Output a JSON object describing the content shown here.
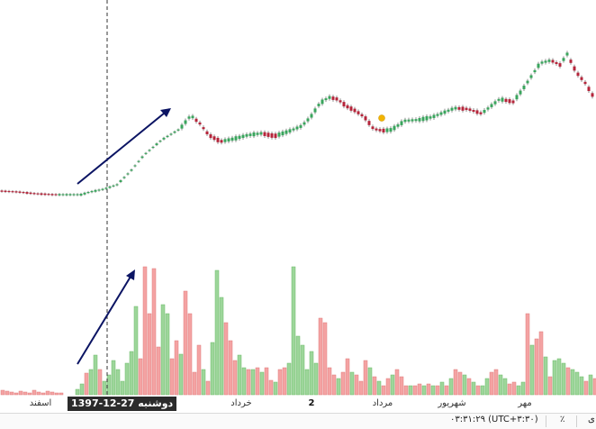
{
  "time_axis": {
    "ticks": [
      {
        "label": "اسفند",
        "bold": false
      },
      {
        "label": "خرداد",
        "bold": false
      },
      {
        "label": "2",
        "bold": true
      },
      {
        "label": "مرداد",
        "bold": false
      },
      {
        "label": "شهریور",
        "bold": false
      },
      {
        "label": "مهر",
        "bold": false
      }
    ],
    "crosshair_label": "دوشنبه 27-12-1397"
  },
  "status_bar": {
    "time": "۰۳:۳۱:۲۹ (UTC+۳:۳۰)",
    "percent_button": "٪",
    "log_button": "ی"
  },
  "colors": {
    "up_candle": "#3aa55d",
    "down_candle": "#b5243a",
    "up_volume": "#9dd69a",
    "down_volume": "#f4a3a3",
    "arrow": "#0b1463",
    "marker": "#f2b400"
  },
  "chart_data": {
    "type": "candlestick",
    "price_path": [
      [
        0,
        212
      ],
      [
        20,
        213
      ],
      [
        40,
        215
      ],
      [
        60,
        216
      ],
      [
        90,
        216
      ],
      [
        100,
        213
      ],
      [
        115,
        210
      ],
      [
        130,
        205
      ],
      [
        145,
        190
      ],
      [
        160,
        172
      ],
      [
        180,
        155
      ],
      [
        200,
        143
      ],
      [
        212,
        128
      ],
      [
        222,
        137
      ],
      [
        232,
        150
      ],
      [
        245,
        157
      ],
      [
        260,
        154
      ],
      [
        275,
        150
      ],
      [
        290,
        148
      ],
      [
        305,
        151
      ],
      [
        320,
        146
      ],
      [
        335,
        140
      ],
      [
        345,
        130
      ],
      [
        355,
        115
      ],
      [
        365,
        108
      ],
      [
        375,
        110
      ],
      [
        385,
        118
      ],
      [
        395,
        123
      ],
      [
        405,
        130
      ],
      [
        415,
        143
      ],
      [
        425,
        145
      ],
      [
        435,
        144
      ],
      [
        450,
        134
      ],
      [
        465,
        133
      ],
      [
        480,
        130
      ],
      [
        495,
        124
      ],
      [
        505,
        120
      ],
      [
        520,
        121
      ],
      [
        535,
        126
      ],
      [
        545,
        118
      ],
      [
        555,
        110
      ],
      [
        570,
        113
      ],
      [
        580,
        100
      ],
      [
        590,
        85
      ],
      [
        600,
        70
      ],
      [
        612,
        67
      ],
      [
        622,
        72
      ],
      [
        630,
        60
      ],
      [
        640,
        80
      ],
      [
        650,
        92
      ],
      [
        662,
        112
      ]
    ],
    "volume_bars": [
      [
        3,
        5,
        "d"
      ],
      [
        8,
        4,
        "d"
      ],
      [
        13,
        3,
        "d"
      ],
      [
        18,
        2,
        "d"
      ],
      [
        23,
        4,
        "d"
      ],
      [
        28,
        3,
        "d"
      ],
      [
        33,
        2,
        "d"
      ],
      [
        38,
        5,
        "d"
      ],
      [
        43,
        3,
        "d"
      ],
      [
        48,
        2,
        "d"
      ],
      [
        53,
        4,
        "d"
      ],
      [
        58,
        3,
        "d"
      ],
      [
        63,
        2,
        "d"
      ],
      [
        68,
        2,
        "d"
      ],
      [
        86,
        6,
        "u"
      ],
      [
        91,
        12,
        "u"
      ],
      [
        96,
        24,
        "d"
      ],
      [
        101,
        28,
        "u"
      ],
      [
        106,
        44,
        "u"
      ],
      [
        111,
        28,
        "d"
      ],
      [
        116,
        15,
        "u"
      ],
      [
        121,
        22,
        "u"
      ],
      [
        126,
        38,
        "u"
      ],
      [
        131,
        28,
        "u"
      ],
      [
        136,
        15,
        "u"
      ],
      [
        141,
        35,
        "u"
      ],
      [
        146,
        48,
        "u"
      ],
      [
        151,
        98,
        "u"
      ],
      [
        156,
        40,
        "d"
      ],
      [
        161,
        142,
        "d"
      ],
      [
        166,
        90,
        "d"
      ],
      [
        171,
        140,
        "d"
      ],
      [
        176,
        53,
        "d"
      ],
      [
        181,
        100,
        "u"
      ],
      [
        186,
        90,
        "u"
      ],
      [
        191,
        40,
        "d"
      ],
      [
        196,
        60,
        "d"
      ],
      [
        201,
        45,
        "u"
      ],
      [
        206,
        115,
        "d"
      ],
      [
        211,
        90,
        "d"
      ],
      [
        216,
        25,
        "d"
      ],
      [
        221,
        55,
        "d"
      ],
      [
        226,
        28,
        "u"
      ],
      [
        231,
        15,
        "d"
      ],
      [
        236,
        58,
        "u"
      ],
      [
        241,
        138,
        "u"
      ],
      [
        246,
        108,
        "u"
      ],
      [
        251,
        80,
        "d"
      ],
      [
        256,
        60,
        "d"
      ],
      [
        261,
        38,
        "d"
      ],
      [
        266,
        44,
        "u"
      ],
      [
        271,
        30,
        "u"
      ],
      [
        276,
        28,
        "d"
      ],
      [
        281,
        28,
        "u"
      ],
      [
        286,
        30,
        "d"
      ],
      [
        291,
        25,
        "u"
      ],
      [
        296,
        30,
        "d"
      ],
      [
        301,
        16,
        "d"
      ],
      [
        306,
        14,
        "u"
      ],
      [
        311,
        28,
        "d"
      ],
      [
        316,
        30,
        "d"
      ],
      [
        321,
        35,
        "u"
      ],
      [
        326,
        142,
        "u"
      ],
      [
        331,
        65,
        "u"
      ],
      [
        336,
        55,
        "u"
      ],
      [
        341,
        28,
        "u"
      ],
      [
        346,
        48,
        "u"
      ],
      [
        351,
        35,
        "u"
      ],
      [
        356,
        85,
        "d"
      ],
      [
        361,
        80,
        "d"
      ],
      [
        366,
        30,
        "d"
      ],
      [
        371,
        22,
        "d"
      ],
      [
        376,
        18,
        "u"
      ],
      [
        381,
        25,
        "d"
      ],
      [
        386,
        40,
        "d"
      ],
      [
        391,
        25,
        "u"
      ],
      [
        396,
        22,
        "d"
      ],
      [
        401,
        15,
        "d"
      ],
      [
        406,
        38,
        "d"
      ],
      [
        411,
        30,
        "u"
      ],
      [
        416,
        20,
        "d"
      ],
      [
        421,
        15,
        "u"
      ],
      [
        426,
        10,
        "d"
      ],
      [
        431,
        18,
        "d"
      ],
      [
        436,
        22,
        "u"
      ],
      [
        441,
        28,
        "d"
      ],
      [
        446,
        20,
        "d"
      ],
      [
        451,
        10,
        "d"
      ],
      [
        456,
        10,
        "u"
      ],
      [
        461,
        10,
        "d"
      ],
      [
        466,
        12,
        "d"
      ],
      [
        471,
        10,
        "u"
      ],
      [
        476,
        12,
        "d"
      ],
      [
        481,
        10,
        "u"
      ],
      [
        486,
        10,
        "d"
      ],
      [
        491,
        14,
        "u"
      ],
      [
        496,
        10,
        "d"
      ],
      [
        501,
        18,
        "u"
      ],
      [
        506,
        28,
        "d"
      ],
      [
        511,
        25,
        "d"
      ],
      [
        516,
        22,
        "u"
      ],
      [
        521,
        18,
        "d"
      ],
      [
        526,
        14,
        "u"
      ],
      [
        531,
        10,
        "d"
      ],
      [
        536,
        10,
        "u"
      ],
      [
        541,
        18,
        "u"
      ],
      [
        546,
        25,
        "d"
      ],
      [
        551,
        28,
        "d"
      ],
      [
        556,
        22,
        "u"
      ],
      [
        561,
        18,
        "u"
      ],
      [
        566,
        12,
        "d"
      ],
      [
        571,
        14,
        "d"
      ],
      [
        576,
        10,
        "u"
      ],
      [
        581,
        14,
        "u"
      ],
      [
        586,
        90,
        "d"
      ],
      [
        591,
        55,
        "u"
      ],
      [
        596,
        62,
        "d"
      ],
      [
        601,
        70,
        "d"
      ],
      [
        606,
        42,
        "u"
      ],
      [
        611,
        20,
        "d"
      ],
      [
        616,
        38,
        "u"
      ],
      [
        621,
        40,
        "u"
      ],
      [
        626,
        35,
        "u"
      ],
      [
        631,
        30,
        "d"
      ],
      [
        636,
        28,
        "u"
      ],
      [
        641,
        25,
        "u"
      ],
      [
        646,
        20,
        "u"
      ],
      [
        651,
        15,
        "d"
      ],
      [
        656,
        22,
        "u"
      ],
      [
        661,
        18,
        "d"
      ]
    ]
  }
}
